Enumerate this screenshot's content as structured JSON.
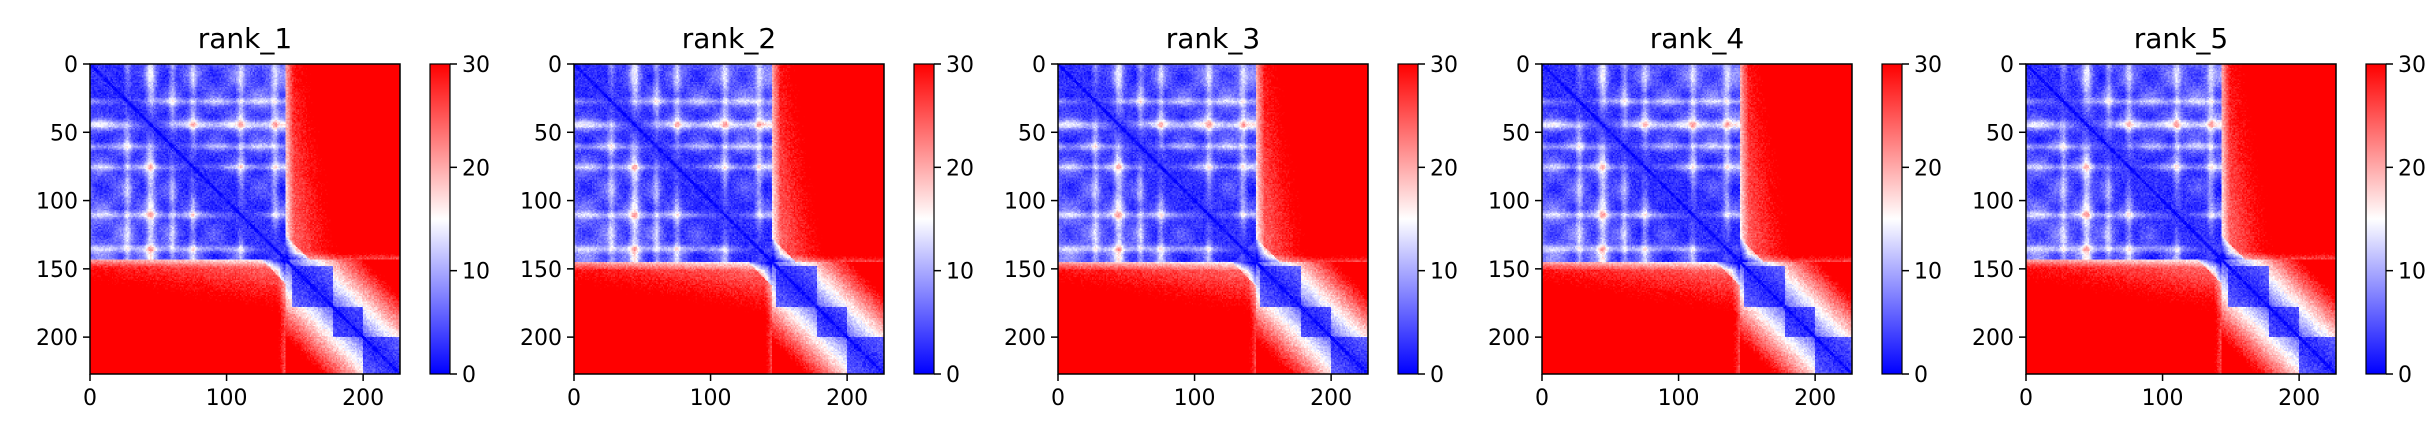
{
  "figure": {
    "panels": [
      {
        "title": "rank_1"
      },
      {
        "title": "rank_2"
      },
      {
        "title": "rank_3"
      },
      {
        "title": "rank_4"
      },
      {
        "title": "rank_5"
      }
    ]
  },
  "chart_data": [
    {
      "type": "heatmap",
      "title": "rank_1",
      "xlim": [
        0,
        227
      ],
      "ylim": [
        227,
        0
      ],
      "xticks": [
        "0",
        "100",
        "200"
      ],
      "yticks": [
        "0",
        "50",
        "100",
        "150",
        "200"
      ],
      "colorbar": {
        "range": [
          0,
          30
        ],
        "ticks": [
          "0",
          "10",
          "20",
          "30"
        ],
        "colormap": "bwr",
        "low": "#0000ff",
        "mid": "#ffffff",
        "high": "#ff0000"
      },
      "structure": {
        "n": 227,
        "domain_a": [
          0,
          143
        ],
        "domain_b": [
          143,
          227
        ],
        "band_rows": [
          27,
          44,
          60,
          75,
          110,
          135
        ],
        "sub_blocks": [
          [
            148,
            178
          ],
          [
            178,
            200
          ],
          [
            200,
            227
          ]
        ]
      }
    },
    {
      "type": "heatmap",
      "title": "rank_2",
      "xlim": [
        0,
        227
      ],
      "ylim": [
        227,
        0
      ],
      "xticks": [
        "0",
        "100",
        "200"
      ],
      "yticks": [
        "0",
        "50",
        "100",
        "150",
        "200"
      ],
      "colorbar": {
        "range": [
          0,
          30
        ],
        "ticks": [
          "0",
          "10",
          "20",
          "30"
        ],
        "colormap": "bwr",
        "low": "#0000ff",
        "mid": "#ffffff",
        "high": "#ff0000"
      },
      "structure": {
        "n": 227,
        "domain_a": [
          0,
          145
        ],
        "domain_b": [
          145,
          227
        ],
        "band_rows": [
          27,
          44,
          60,
          75,
          110,
          135
        ],
        "sub_blocks": [
          [
            148,
            178
          ],
          [
            178,
            200
          ],
          [
            200,
            227
          ]
        ]
      }
    },
    {
      "type": "heatmap",
      "title": "rank_3",
      "xlim": [
        0,
        227
      ],
      "ylim": [
        227,
        0
      ],
      "xticks": [
        "0",
        "100",
        "200"
      ],
      "yticks": [
        "0",
        "50",
        "100",
        "150",
        "200"
      ],
      "colorbar": {
        "range": [
          0,
          30
        ],
        "ticks": [
          "0",
          "10",
          "20",
          "30"
        ],
        "colormap": "bwr",
        "low": "#0000ff",
        "mid": "#ffffff",
        "high": "#ff0000"
      },
      "structure": {
        "n": 227,
        "domain_a": [
          0,
          145
        ],
        "domain_b": [
          145,
          227
        ],
        "band_rows": [
          27,
          44,
          60,
          75,
          110,
          135
        ],
        "sub_blocks": [
          [
            148,
            178
          ],
          [
            178,
            200
          ],
          [
            200,
            227
          ]
        ]
      }
    },
    {
      "type": "heatmap",
      "title": "rank_4",
      "xlim": [
        0,
        227
      ],
      "ylim": [
        227,
        0
      ],
      "xticks": [
        "0",
        "100",
        "200"
      ],
      "yticks": [
        "0",
        "50",
        "100",
        "150",
        "200"
      ],
      "colorbar": {
        "range": [
          0,
          30
        ],
        "ticks": [
          "0",
          "10",
          "20",
          "30"
        ],
        "colormap": "bwr",
        "low": "#0000ff",
        "mid": "#ffffff",
        "high": "#ff0000"
      },
      "structure": {
        "n": 227,
        "domain_a": [
          0,
          145
        ],
        "domain_b": [
          145,
          227
        ],
        "band_rows": [
          27,
          44,
          60,
          75,
          110,
          135
        ],
        "sub_blocks": [
          [
            148,
            178
          ],
          [
            178,
            200
          ],
          [
            200,
            227
          ]
        ]
      }
    },
    {
      "type": "heatmap",
      "title": "rank_5",
      "xlim": [
        0,
        227
      ],
      "ylim": [
        227,
        0
      ],
      "xticks": [
        "0",
        "100",
        "200"
      ],
      "yticks": [
        "0",
        "50",
        "100",
        "150",
        "200"
      ],
      "colorbar": {
        "range": [
          0,
          30
        ],
        "ticks": [
          "0",
          "10",
          "20",
          "30"
        ],
        "colormap": "bwr",
        "low": "#0000ff",
        "mid": "#ffffff",
        "high": "#ff0000"
      },
      "structure": {
        "n": 227,
        "domain_a": [
          0,
          143
        ],
        "domain_b": [
          143,
          227
        ],
        "band_rows": [
          27,
          44,
          60,
          75,
          110,
          135
        ],
        "sub_blocks": [
          [
            148,
            178
          ],
          [
            178,
            200
          ],
          [
            200,
            227
          ]
        ]
      }
    }
  ]
}
